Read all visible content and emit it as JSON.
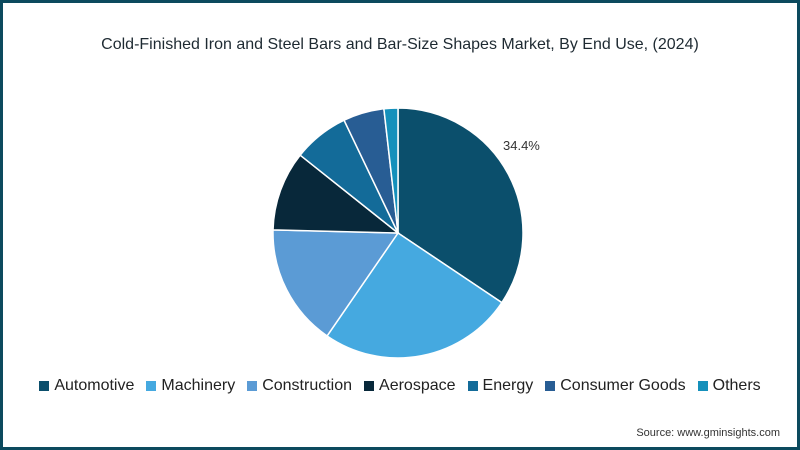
{
  "title": "Cold-Finished Iron and Steel Bars and Bar-Size Shapes Market, By End Use,  (2024)",
  "source": "Source: www.gminsights.com",
  "chart_data": {
    "type": "pie",
    "title": "Cold-Finished Iron and Steel Bars and Bar-Size Shapes Market, By End Use,  (2024)",
    "categories": [
      "Automotive",
      "Machinery",
      "Construction",
      "Aerospace",
      "Energy",
      "Consumer Goods",
      "Others"
    ],
    "values": [
      34.4,
      25.2,
      15.8,
      10.3,
      7.2,
      5.3,
      1.8
    ],
    "colors": [
      "#0b4f6c",
      "#45a9e0",
      "#5b9bd5",
      "#08283a",
      "#136b99",
      "#285d94",
      "#1590bb"
    ],
    "data_labels": [
      {
        "category": "Automotive",
        "text": "34.4%"
      }
    ],
    "legend_position": "bottom",
    "start_angle": 0,
    "direction": "clockwise"
  },
  "legend": [
    {
      "label": "Automotive",
      "color": "#0b4f6c"
    },
    {
      "label": "Machinery",
      "color": "#45a9e0"
    },
    {
      "label": "Construction",
      "color": "#5b9bd5"
    },
    {
      "label": "Aerospace",
      "color": "#08283a"
    },
    {
      "label": "Energy",
      "color": "#136b99"
    },
    {
      "label": "Consumer Goods",
      "color": "#285d94"
    },
    {
      "label": "Others",
      "color": "#1590bb"
    }
  ],
  "label_text": "34.4%"
}
